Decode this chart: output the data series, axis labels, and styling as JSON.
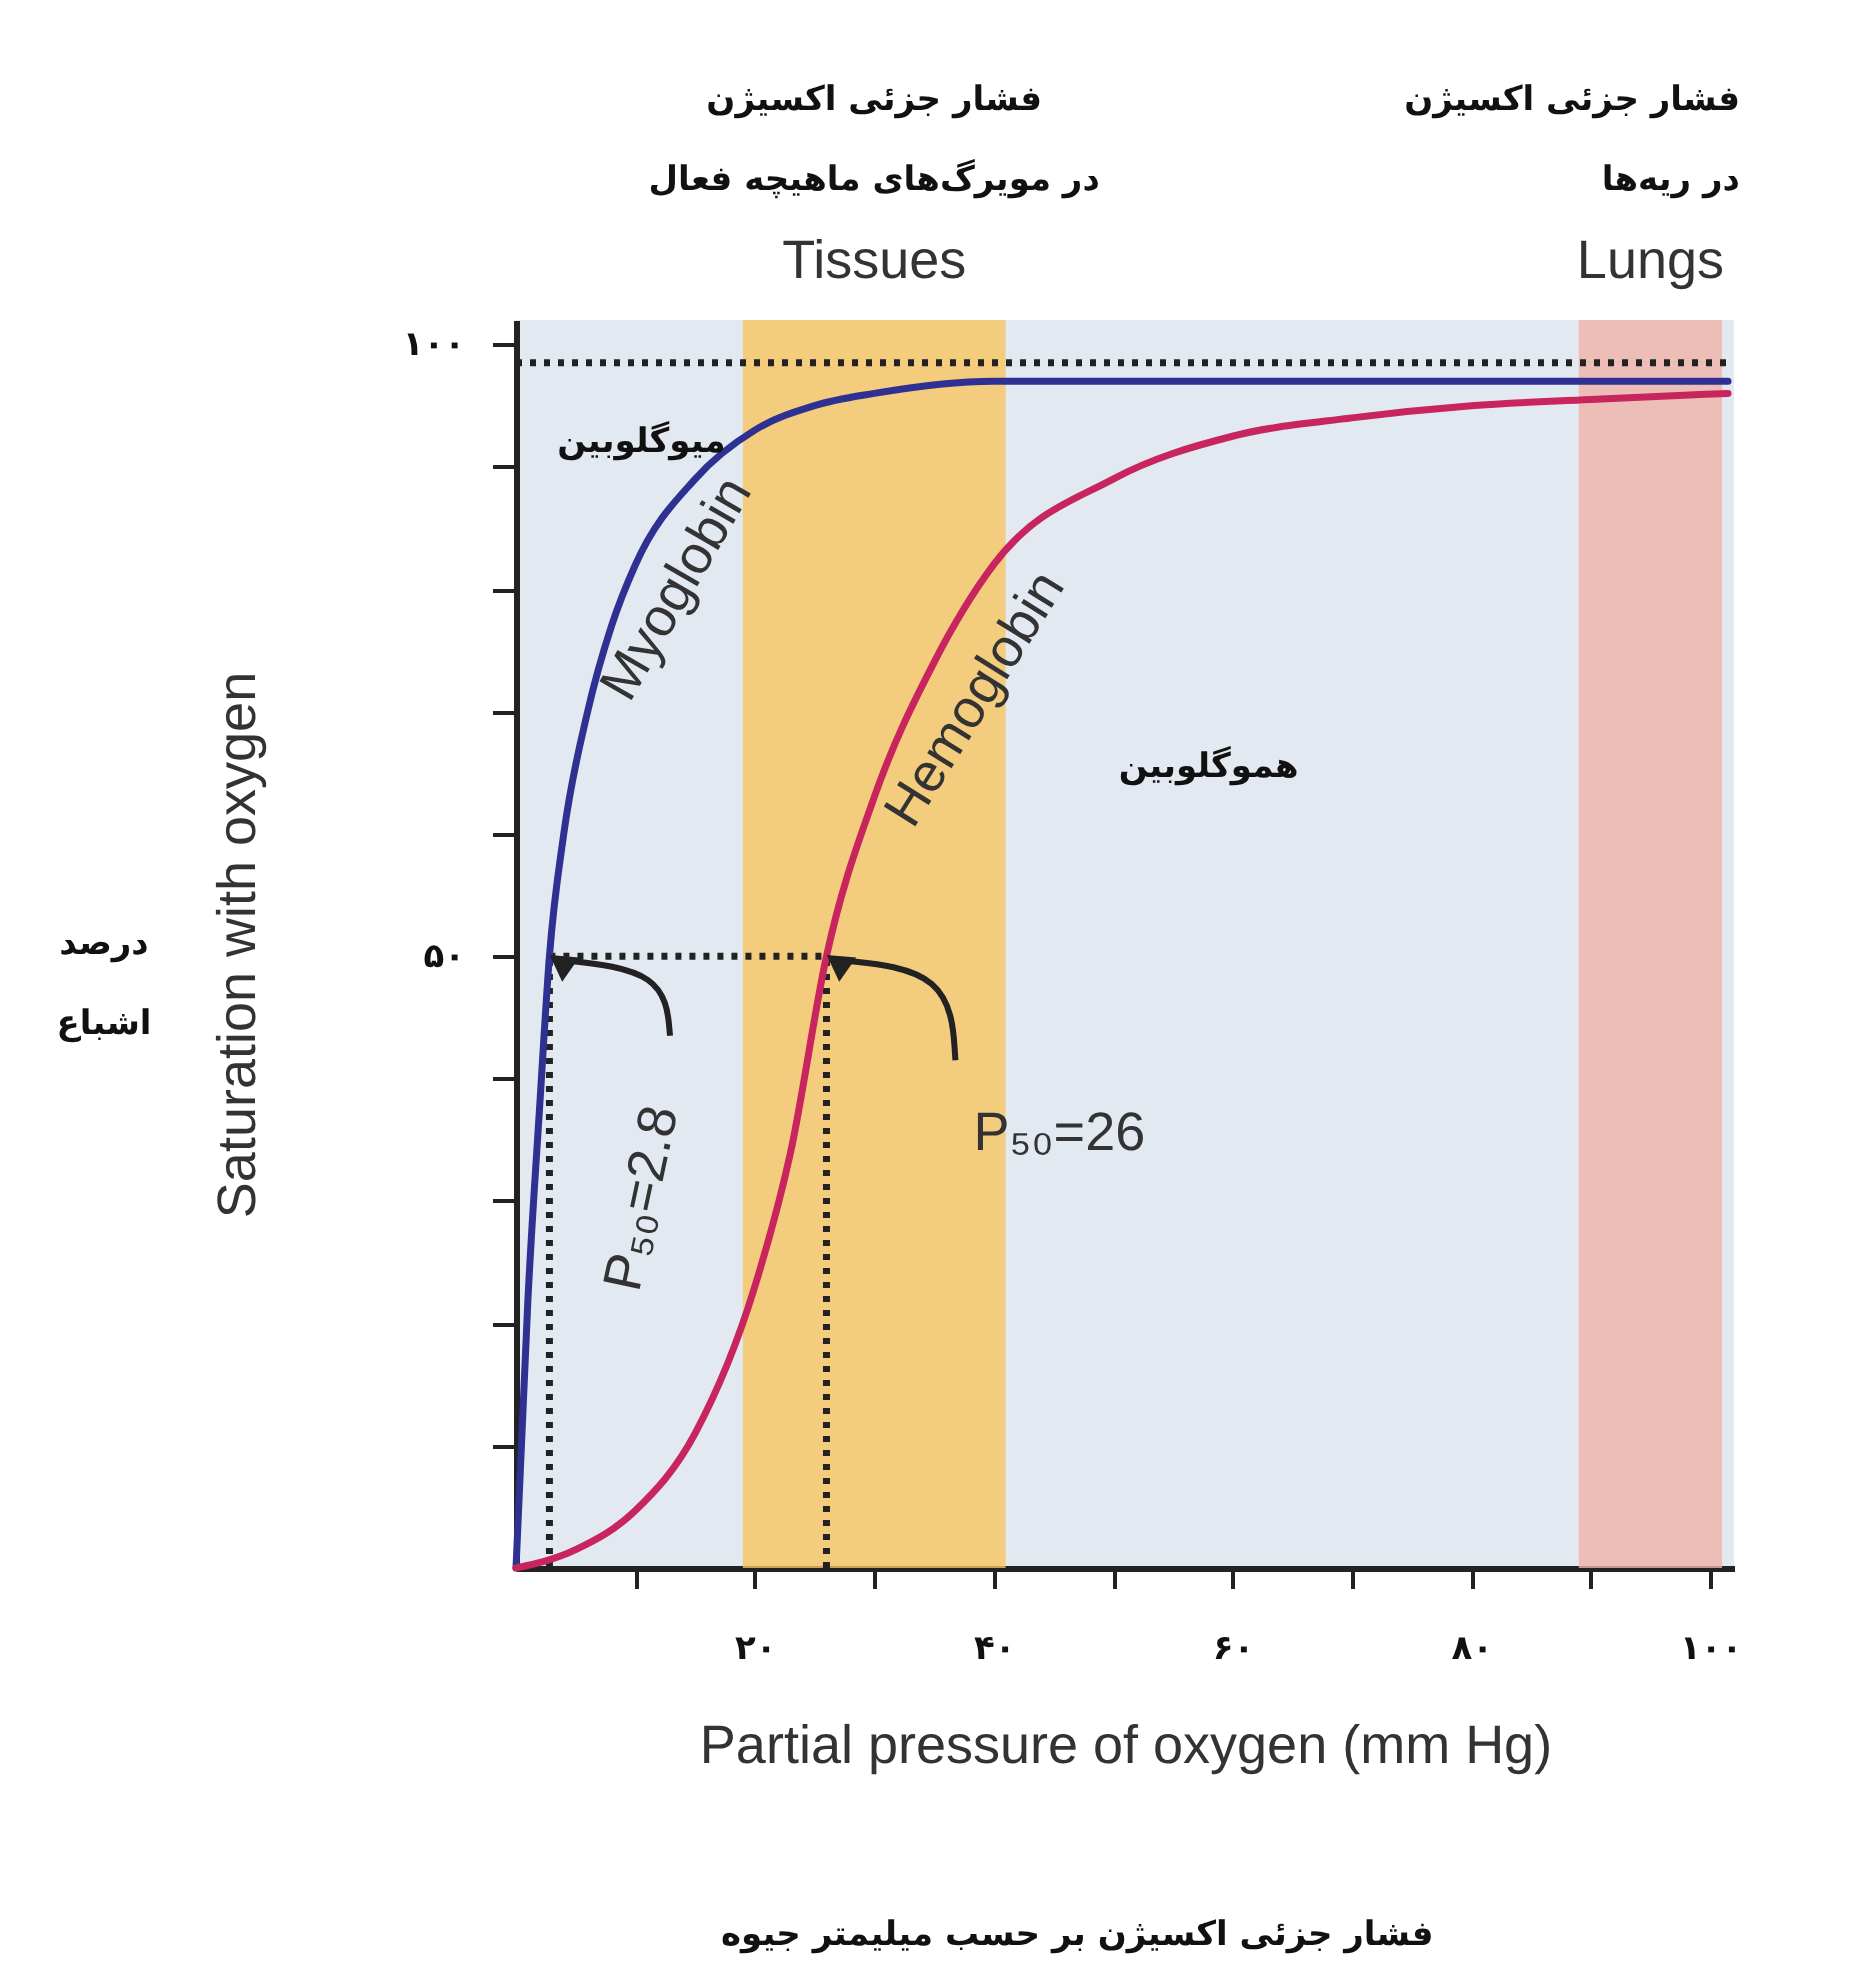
{
  "chart_data": {
    "type": "line",
    "xlabel": "Partial pressure of oxygen (mm Hg)",
    "ylabel": "Saturation with oxygen",
    "xlim": [
      0,
      102
    ],
    "ylim": [
      0,
      102
    ],
    "xticks": [
      {
        "value": 10,
        "label": null
      },
      {
        "value": 20,
        "label": "۲۰"
      },
      {
        "value": 30,
        "label": null
      },
      {
        "value": 40,
        "label": "۴۰"
      },
      {
        "value": 50,
        "label": null
      },
      {
        "value": 60,
        "label": "۶۰"
      },
      {
        "value": 70,
        "label": null
      },
      {
        "value": 80,
        "label": "۸۰"
      },
      {
        "value": 90,
        "label": null
      },
      {
        "value": 100,
        "label": "۱۰۰"
      }
    ],
    "yticks": [
      {
        "value": 10,
        "label": null
      },
      {
        "value": 20,
        "label": null
      },
      {
        "value": 30,
        "label": null
      },
      {
        "value": 40,
        "label": null
      },
      {
        "value": 50,
        "label": "۵۰"
      },
      {
        "value": 60,
        "label": null
      },
      {
        "value": 70,
        "label": null
      },
      {
        "value": 80,
        "label": null
      },
      {
        "value": 90,
        "label": null
      },
      {
        "value": 100,
        "label": "۱۰۰"
      }
    ],
    "series": [
      {
        "name": "Myoglobin",
        "color": "#2e3192",
        "x": [
          0,
          1,
          2,
          2.8,
          4,
          6,
          8,
          10,
          15,
          20,
          25,
          30,
          40,
          50,
          60,
          80,
          101.5
        ],
        "values": [
          0,
          22,
          38,
          50,
          60,
          70,
          77,
          82,
          89,
          93,
          95,
          96,
          97,
          97,
          97,
          97,
          97
        ]
      },
      {
        "name": "Hemoglobin",
        "color": "#c8245e",
        "x": [
          0,
          5,
          10,
          15,
          20,
          23,
          26,
          30,
          35,
          40,
          50,
          60,
          70,
          80,
          90,
          101.5
        ],
        "values": [
          0,
          1.5,
          4.7,
          11,
          23,
          34,
          50,
          63,
          74,
          82,
          89,
          92.5,
          94,
          95,
          95.5,
          96
        ]
      }
    ],
    "bands": [
      {
        "axis": "x",
        "from": 19,
        "to": 41,
        "label": "Tissues",
        "color": "#f7c462"
      },
      {
        "axis": "x",
        "from": 89,
        "to": 101,
        "label": "Lungs",
        "color": "#efb3aa"
      }
    ],
    "ref_lines": [
      {
        "axis": "y",
        "value": 98.5,
        "color": "#222222",
        "line_style": "dotted"
      },
      {
        "axis": "y",
        "value": 50,
        "color": "#222222",
        "line_style": "dotted"
      },
      {
        "axis": "x",
        "value": 2.8,
        "color": "#222222",
        "line_style": "dotted"
      },
      {
        "axis": "x",
        "value": 26,
        "color": "#222222",
        "line_style": "dotted"
      }
    ],
    "annotations": [
      "فشار جزئی اکسیژن\nدر مویرگ‌های ماهیچه فعال",
      "فشار جزئی اکسیژن\nدر ریه‌ها",
      "میوگلوبین",
      "هموگلوبین",
      {
        "text": "P₅₀=2.8",
        "x": 2.8,
        "y": 50
      },
      {
        "text": "P₅₀=26",
        "x": 26,
        "y": 50
      },
      "درصد\nاشباع",
      "فشار جزئی اکسیژن بر حسب میلیمتر جیوه"
    ],
    "grid": false,
    "legend": false,
    "line_style": "solid",
    "marker": "none"
  }
}
